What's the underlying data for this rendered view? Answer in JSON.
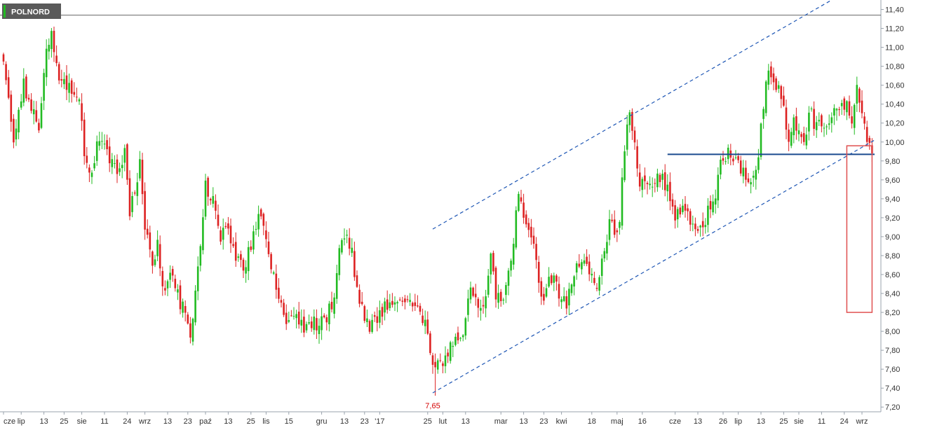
{
  "ticker": "POLNORD",
  "colors": {
    "up": "#22bb22",
    "down": "#dd2222",
    "trendline": "#1f57b5",
    "resistance": "#1a4a8f",
    "highlight_box": "#e05050",
    "top_line": "#666666",
    "low_label": "#d40000",
    "badge_bg": "#5a5a5a"
  },
  "chart_data": {
    "type": "candlestick",
    "title": "",
    "xlabel": "",
    "ylabel": "",
    "ylim": [
      7.15,
      11.5
    ],
    "grid": false,
    "y_ticks": [
      "7,20",
      "7,40",
      "7,60",
      "7,80",
      "8,00",
      "8,20",
      "8,40",
      "8,60",
      "8,80",
      "9,00",
      "9,20",
      "9,40",
      "9,60",
      "9,80",
      "10,00",
      "10,20",
      "10,40",
      "10,60",
      "10,80",
      "11,00",
      "11,20",
      "11,40"
    ],
    "x_ticks": [
      {
        "label": "cze",
        "i": 0
      },
      {
        "label": "lip",
        "i": 7
      },
      {
        "label": "13",
        "i": 16
      },
      {
        "label": "25",
        "i": 24
      },
      {
        "label": "sie",
        "i": 31
      },
      {
        "label": "11",
        "i": 40
      },
      {
        "label": "24",
        "i": 49
      },
      {
        "label": "wrz",
        "i": 56
      },
      {
        "label": "13",
        "i": 65
      },
      {
        "label": "23",
        "i": 73
      },
      {
        "label": "paź",
        "i": 80
      },
      {
        "label": "13",
        "i": 89
      },
      {
        "label": "25",
        "i": 98
      },
      {
        "label": "lis",
        "i": 104
      },
      {
        "label": "15",
        "i": 113
      },
      {
        "label": "gru",
        "i": 126
      },
      {
        "label": "13",
        "i": 135
      },
      {
        "label": "23",
        "i": 143
      },
      {
        "label": "'17",
        "i": 149
      },
      {
        "label": "25",
        "i": 168
      },
      {
        "label": "lut",
        "i": 174
      },
      {
        "label": "13",
        "i": 183
      },
      {
        "label": "mar",
        "i": 197
      },
      {
        "label": "13",
        "i": 206
      },
      {
        "label": "23",
        "i": 214
      },
      {
        "label": "kwi",
        "i": 221
      },
      {
        "label": "18",
        "i": 233
      },
      {
        "label": "maj",
        "i": 243
      },
      {
        "label": "16",
        "i": 253
      },
      {
        "label": "cze",
        "i": 266
      },
      {
        "label": "13",
        "i": 275
      },
      {
        "label": "26",
        "i": 285
      },
      {
        "label": "lip",
        "i": 291
      },
      {
        "label": "13",
        "i": 300
      },
      {
        "label": "25",
        "i": 309
      },
      {
        "label": "sie",
        "i": 315
      },
      {
        "label": "11",
        "i": 324
      },
      {
        "label": "24",
        "i": 333
      },
      {
        "label": "wrz",
        "i": 340
      }
    ],
    "low_annotation": {
      "label": "7,65",
      "i": 170,
      "value": 7.32
    },
    "top_line_value": 11.34,
    "resistance": {
      "value": 9.87,
      "i_start": 263,
      "i_end": 345
    },
    "channel_upper": {
      "i1": 170,
      "v1": 9.08,
      "i2": 328,
      "v2": 11.5
    },
    "channel_lower": {
      "i1": 170,
      "v1": 7.35,
      "i2": 345,
      "v2": 10.02
    },
    "highlight_box": {
      "i_start": 334,
      "i_end": 344,
      "v_top": 9.96,
      "v_bottom": 8.2
    },
    "anchors": [
      [
        0,
        10.85
      ],
      [
        4,
        10.05
      ],
      [
        8,
        10.6
      ],
      [
        12,
        10.3
      ],
      [
        14,
        10.2
      ],
      [
        17,
        11.0
      ],
      [
        19,
        11.15
      ],
      [
        22,
        10.7
      ],
      [
        26,
        10.55
      ],
      [
        30,
        10.45
      ],
      [
        32,
        9.85
      ],
      [
        35,
        9.65
      ],
      [
        37,
        10.05
      ],
      [
        42,
        9.85
      ],
      [
        46,
        9.7
      ],
      [
        48,
        9.9
      ],
      [
        50,
        9.25
      ],
      [
        54,
        9.75
      ],
      [
        56,
        9.1
      ],
      [
        59,
        8.7
      ],
      [
        61,
        8.9
      ],
      [
        63,
        8.45
      ],
      [
        66,
        8.6
      ],
      [
        70,
        8.3
      ],
      [
        72,
        8.2
      ],
      [
        74,
        7.95
      ],
      [
        76,
        8.4
      ],
      [
        78,
        8.9
      ],
      [
        80,
        9.55
      ],
      [
        83,
        9.35
      ],
      [
        86,
        9.0
      ],
      [
        89,
        9.05
      ],
      [
        92,
        8.8
      ],
      [
        95,
        8.65
      ],
      [
        98,
        8.9
      ],
      [
        101,
        9.2
      ],
      [
        104,
        9.05
      ],
      [
        107,
        8.55
      ],
      [
        110,
        8.25
      ],
      [
        113,
        8.05
      ],
      [
        116,
        8.2
      ],
      [
        119,
        8.0
      ],
      [
        122,
        8.1
      ],
      [
        125,
        8.05
      ],
      [
        128,
        8.15
      ],
      [
        131,
        8.35
      ],
      [
        133,
        8.9
      ],
      [
        135,
        9.05
      ],
      [
        138,
        8.85
      ],
      [
        140,
        8.45
      ],
      [
        143,
        8.1
      ],
      [
        146,
        8.05
      ],
      [
        149,
        8.15
      ],
      [
        152,
        8.3
      ],
      [
        155,
        8.3
      ],
      [
        158,
        8.25
      ],
      [
        161,
        8.35
      ],
      [
        164,
        8.25
      ],
      [
        167,
        8.05
      ],
      [
        169,
        7.75
      ],
      [
        171,
        7.65
      ],
      [
        174,
        7.7
      ],
      [
        177,
        7.85
      ],
      [
        180,
        7.9
      ],
      [
        183,
        8.1
      ],
      [
        185,
        8.45
      ],
      [
        188,
        8.3
      ],
      [
        190,
        8.25
      ],
      [
        193,
        8.85
      ],
      [
        195,
        8.35
      ],
      [
        198,
        8.3
      ],
      [
        200,
        8.65
      ],
      [
        202,
        9.0
      ],
      [
        204,
        9.45
      ],
      [
        206,
        9.25
      ],
      [
        208,
        9.1
      ],
      [
        210,
        8.85
      ],
      [
        212,
        8.55
      ],
      [
        214,
        8.25
      ],
      [
        216,
        8.6
      ],
      [
        218,
        8.55
      ],
      [
        220,
        8.35
      ],
      [
        223,
        8.3
      ],
      [
        226,
        8.6
      ],
      [
        229,
        8.75
      ],
      [
        232,
        8.6
      ],
      [
        235,
        8.5
      ],
      [
        238,
        8.8
      ],
      [
        240,
        9.15
      ],
      [
        242,
        9.05
      ],
      [
        244,
        9.2
      ],
      [
        246,
        9.95
      ],
      [
        248,
        10.3
      ],
      [
        250,
        10.05
      ],
      [
        252,
        9.55
      ],
      [
        254,
        9.6
      ],
      [
        257,
        9.5
      ],
      [
        260,
        9.65
      ],
      [
        263,
        9.5
      ],
      [
        266,
        9.2
      ],
      [
        269,
        9.3
      ],
      [
        272,
        9.2
      ],
      [
        275,
        9.05
      ],
      [
        278,
        9.2
      ],
      [
        281,
        9.35
      ],
      [
        284,
        9.75
      ],
      [
        287,
        9.9
      ],
      [
        290,
        9.8
      ],
      [
        293,
        9.65
      ],
      [
        296,
        9.55
      ],
      [
        299,
        9.85
      ],
      [
        301,
        10.4
      ],
      [
        303,
        10.75
      ],
      [
        305,
        10.6
      ],
      [
        307,
        10.55
      ],
      [
        309,
        10.35
      ],
      [
        311,
        10.05
      ],
      [
        313,
        10.2
      ],
      [
        315,
        10.1
      ],
      [
        317,
        9.95
      ],
      [
        319,
        10.35
      ],
      [
        321,
        10.2
      ],
      [
        323,
        10.25
      ],
      [
        326,
        10.1
      ],
      [
        329,
        10.3
      ],
      [
        332,
        10.35
      ],
      [
        334,
        10.45
      ],
      [
        336,
        10.2
      ],
      [
        338,
        10.6
      ],
      [
        340,
        10.3
      ],
      [
        342,
        10.05
      ],
      [
        344,
        9.88
      ]
    ]
  }
}
